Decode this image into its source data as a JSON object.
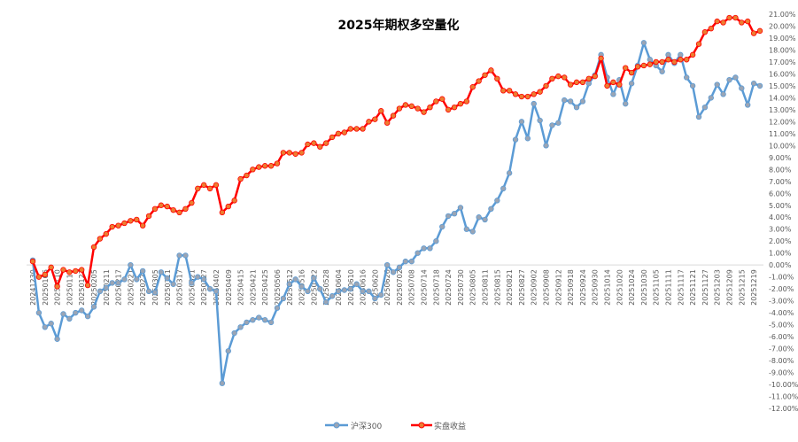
{
  "chart_data": {
    "type": "line",
    "title": "2025年期权多空量化",
    "xlabel": "",
    "ylabel": "",
    "ylim": [
      -12,
      21
    ],
    "y_tick_step": 1,
    "y_tick_format": "percent_2dp",
    "y_axis_position": "right",
    "grid": "zero line only",
    "legend_position": "bottom",
    "x_tick_labels": [
      "20241230",
      "20250106",
      "20250110",
      "20250116",
      "20250122",
      "20250205",
      "20250211",
      "20250217",
      "20250221",
      "20250227",
      "20250305",
      "20250311",
      "20250317",
      "20250321",
      "20250327",
      "20250402",
      "20250409",
      "20250415",
      "20250421",
      "20250425",
      "20250506",
      "20250512",
      "20250516",
      "20250522",
      "20250528",
      "20250604",
      "20250610",
      "20250616",
      "20250620",
      "20250626",
      "20250702",
      "20250708",
      "20250714",
      "20250718",
      "20250724",
      "20250730",
      "20250805",
      "20250811",
      "20250815",
      "20250821",
      "20250827",
      "20250902",
      "20250908",
      "20250912",
      "20250918",
      "20250924",
      "20250930",
      "20251014",
      "20251020",
      "20251024",
      "20251030",
      "20251105",
      "20251111",
      "20251117",
      "20251121",
      "20251127",
      "20251203",
      "20251209",
      "20251215",
      "20251219"
    ],
    "points_per_tick": 2,
    "series": [
      {
        "name": "沪深300",
        "color": "#5b9bd5",
        "marker_color": "#9aa5b5",
        "values": [
          0.4,
          -4.0,
          -5.2,
          -4.9,
          -6.2,
          -4.1,
          -4.5,
          -4.0,
          -3.8,
          -4.3,
          -3.5,
          -2.2,
          -1.9,
          -1.5,
          -1.5,
          -1.2,
          0.0,
          -1.2,
          -0.5,
          -2.2,
          -2.3,
          -0.6,
          -1.1,
          -1.6,
          0.8,
          0.8,
          -1.5,
          -1.0,
          -1.2,
          -2.0,
          -2.2,
          -9.9,
          -7.2,
          -5.7,
          -5.2,
          -4.8,
          -4.6,
          -4.4,
          -4.6,
          -4.8,
          -3.6,
          -2.8,
          -1.6,
          -1.2,
          -1.8,
          -2.2,
          -1.1,
          -2.0,
          -3.1,
          -2.6,
          -2.2,
          -2.1,
          -2.0,
          -1.6,
          -2.2,
          -2.2,
          -2.8,
          -2.5,
          0.0,
          -0.6,
          -0.2,
          0.3,
          0.3,
          1.0,
          1.4,
          1.4,
          2.0,
          3.2,
          4.1,
          4.3,
          4.8,
          3.0,
          2.8,
          4.0,
          3.8,
          4.7,
          5.4,
          6.4,
          7.7,
          10.5,
          12.0,
          10.6,
          13.5,
          12.1,
          10.0,
          11.7,
          11.9,
          13.8,
          13.7,
          13.2,
          13.7,
          15.2,
          15.9,
          17.6,
          15.7,
          14.3,
          15.5,
          13.5,
          15.2,
          16.7,
          18.6,
          17.2,
          16.7,
          16.2,
          17.6,
          16.9,
          17.6,
          15.7,
          15.0,
          12.4,
          13.2,
          14.0,
          15.1,
          14.3,
          15.5,
          15.7,
          14.8,
          13.4,
          15.2,
          15.0
        ]
      },
      {
        "name": "实盘收益",
        "color": "#ff0000",
        "marker_color": "#ed7d31",
        "values": [
          0.3,
          -1.0,
          -0.8,
          -0.2,
          -1.8,
          -0.4,
          -0.6,
          -0.5,
          -0.4,
          -1.7,
          1.5,
          2.2,
          2.6,
          3.2,
          3.3,
          3.5,
          3.7,
          3.8,
          3.3,
          4.1,
          4.7,
          5.0,
          4.9,
          4.6,
          4.4,
          4.7,
          5.2,
          6.4,
          6.7,
          6.4,
          6.7,
          4.4,
          4.9,
          5.4,
          7.2,
          7.5,
          8.0,
          8.2,
          8.3,
          8.3,
          8.5,
          9.4,
          9.4,
          9.3,
          9.4,
          10.1,
          10.2,
          9.9,
          10.2,
          10.7,
          11.0,
          11.1,
          11.4,
          11.4,
          11.4,
          12.0,
          12.2,
          12.9,
          11.9,
          12.5,
          13.1,
          13.4,
          13.3,
          13.1,
          12.8,
          13.2,
          13.7,
          13.9,
          13.0,
          13.2,
          13.5,
          13.7,
          14.9,
          15.4,
          15.9,
          16.3,
          15.6,
          14.6,
          14.6,
          14.3,
          14.1,
          14.1,
          14.3,
          14.5,
          15.0,
          15.6,
          15.8,
          15.7,
          15.1,
          15.3,
          15.3,
          15.6,
          15.8,
          17.3,
          15.0,
          15.3,
          15.1,
          16.5,
          16.1,
          16.6,
          16.7,
          16.8,
          17.0,
          17.0,
          17.2,
          17.0,
          17.2,
          17.2,
          17.6,
          18.5,
          19.5,
          19.8,
          20.4,
          20.3,
          20.7,
          20.7,
          20.3,
          20.4,
          19.4,
          19.6
        ]
      }
    ]
  }
}
